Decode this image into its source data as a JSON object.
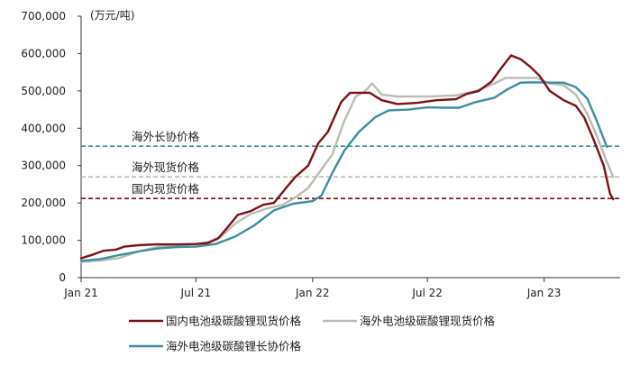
{
  "chart_data": {
    "type": "line",
    "unit_label": "(万元/吨)",
    "title": "",
    "xlabel": "",
    "ylabel": "",
    "ylim": [
      0,
      700000
    ],
    "y_ticks": [
      0,
      100000,
      200000,
      300000,
      400000,
      500000,
      600000,
      700000
    ],
    "y_tick_labels": [
      "0",
      "100,000",
      "200,000",
      "300,000",
      "400,000",
      "500,000",
      "600,000",
      "700,000"
    ],
    "xlim": [
      "2021-01",
      "2023-07"
    ],
    "x_ticks": [
      "2021-01",
      "2021-07",
      "2022-01",
      "2022-07",
      "2023-01"
    ],
    "x_tick_labels": [
      "Jan 21",
      "Jul 21",
      "Jan 22",
      "Jul 22",
      "Jan 23"
    ],
    "grid": false,
    "legend_position": "bottom",
    "series": [
      {
        "name": "国内电池级碳酸锂现货价格",
        "color": "#7b1216",
        "points": [
          [
            "2021-01-01",
            52000
          ],
          [
            "2021-01-20",
            62000
          ],
          [
            "2021-02-05",
            72000
          ],
          [
            "2021-02-25",
            75000
          ],
          [
            "2021-03-10",
            83000
          ],
          [
            "2021-04-01",
            87000
          ],
          [
            "2021-05-01",
            89000
          ],
          [
            "2021-06-01",
            89000
          ],
          [
            "2021-07-01",
            90000
          ],
          [
            "2021-07-20",
            93000
          ],
          [
            "2021-08-05",
            105000
          ],
          [
            "2021-08-20",
            135000
          ],
          [
            "2021-09-05",
            168000
          ],
          [
            "2021-09-25",
            178000
          ],
          [
            "2021-10-15",
            195000
          ],
          [
            "2021-11-01",
            200000
          ],
          [
            "2021-11-20",
            240000
          ],
          [
            "2021-12-05",
            270000
          ],
          [
            "2021-12-25",
            300000
          ],
          [
            "2022-01-10",
            360000
          ],
          [
            "2022-01-25",
            390000
          ],
          [
            "2022-02-15",
            470000
          ],
          [
            "2022-03-01",
            495000
          ],
          [
            "2022-04-01",
            495000
          ],
          [
            "2022-04-20",
            475000
          ],
          [
            "2022-05-15",
            465000
          ],
          [
            "2022-06-15",
            468000
          ],
          [
            "2022-07-15",
            475000
          ],
          [
            "2022-08-15",
            478000
          ],
          [
            "2022-09-01",
            492000
          ],
          [
            "2022-09-20",
            500000
          ],
          [
            "2022-10-10",
            525000
          ],
          [
            "2022-10-25",
            560000
          ],
          [
            "2022-11-10",
            595000
          ],
          [
            "2022-11-25",
            585000
          ],
          [
            "2022-12-10",
            565000
          ],
          [
            "2022-12-25",
            540000
          ],
          [
            "2023-01-10",
            500000
          ],
          [
            "2023-02-01",
            475000
          ],
          [
            "2023-02-20",
            460000
          ],
          [
            "2023-03-05",
            430000
          ],
          [
            "2023-03-20",
            370000
          ],
          [
            "2023-04-05",
            300000
          ],
          [
            "2023-04-15",
            225000
          ],
          [
            "2023-04-20",
            210000
          ]
        ]
      },
      {
        "name": "海外电池级碳酸锂现货价格",
        "color": "#bbbcb1",
        "points": [
          [
            "2021-01-01",
            42000
          ],
          [
            "2021-02-01",
            46000
          ],
          [
            "2021-03-01",
            52000
          ],
          [
            "2021-04-01",
            70000
          ],
          [
            "2021-05-01",
            82000
          ],
          [
            "2021-06-01",
            87000
          ],
          [
            "2021-07-01",
            90000
          ],
          [
            "2021-07-20",
            95000
          ],
          [
            "2021-08-10",
            110000
          ],
          [
            "2021-09-01",
            145000
          ],
          [
            "2021-09-25",
            170000
          ],
          [
            "2021-10-20",
            185000
          ],
          [
            "2021-11-15",
            195000
          ],
          [
            "2021-12-05",
            215000
          ],
          [
            "2021-12-25",
            240000
          ],
          [
            "2022-01-15",
            290000
          ],
          [
            "2022-02-01",
            330000
          ],
          [
            "2022-02-20",
            420000
          ],
          [
            "2022-03-10",
            485000
          ],
          [
            "2022-03-25",
            500000
          ],
          [
            "2022-04-05",
            520000
          ],
          [
            "2022-04-20",
            490000
          ],
          [
            "2022-05-15",
            485000
          ],
          [
            "2022-07-01",
            485000
          ],
          [
            "2022-08-15",
            488000
          ],
          [
            "2022-09-15",
            500000
          ],
          [
            "2022-10-15",
            520000
          ],
          [
            "2022-11-01",
            535000
          ],
          [
            "2022-12-01",
            535000
          ],
          [
            "2022-12-20",
            535000
          ],
          [
            "2023-01-10",
            520000
          ],
          [
            "2023-02-01",
            515000
          ],
          [
            "2023-02-20",
            490000
          ],
          [
            "2023-03-10",
            440000
          ],
          [
            "2023-03-25",
            380000
          ],
          [
            "2023-04-10",
            310000
          ],
          [
            "2023-04-20",
            270000
          ]
        ]
      },
      {
        "name": "海外电池级碳酸锂长协价格",
        "color": "#3c8ea1",
        "points": [
          [
            "2021-01-01",
            45000
          ],
          [
            "2021-02-01",
            50000
          ],
          [
            "2021-03-01",
            60000
          ],
          [
            "2021-04-01",
            70000
          ],
          [
            "2021-05-01",
            78000
          ],
          [
            "2021-06-01",
            82000
          ],
          [
            "2021-07-01",
            83000
          ],
          [
            "2021-08-01",
            90000
          ],
          [
            "2021-09-01",
            110000
          ],
          [
            "2021-10-01",
            140000
          ],
          [
            "2021-11-01",
            180000
          ],
          [
            "2021-12-01",
            198000
          ],
          [
            "2022-01-01",
            205000
          ],
          [
            "2022-01-15",
            220000
          ],
          [
            "2022-02-01",
            280000
          ],
          [
            "2022-02-20",
            340000
          ],
          [
            "2022-03-15",
            390000
          ],
          [
            "2022-04-10",
            430000
          ],
          [
            "2022-05-01",
            448000
          ],
          [
            "2022-06-01",
            450000
          ],
          [
            "2022-07-01",
            456000
          ],
          [
            "2022-08-01",
            455000
          ],
          [
            "2022-08-20",
            455000
          ],
          [
            "2022-09-15",
            470000
          ],
          [
            "2022-10-15",
            482000
          ],
          [
            "2022-11-05",
            505000
          ],
          [
            "2022-11-25",
            522000
          ],
          [
            "2022-12-20",
            523000
          ],
          [
            "2023-01-15",
            522000
          ],
          [
            "2023-02-01",
            522000
          ],
          [
            "2023-02-20",
            510000
          ],
          [
            "2023-03-10",
            480000
          ],
          [
            "2023-03-25",
            420000
          ],
          [
            "2023-04-10",
            350000
          ]
        ]
      }
    ],
    "reference_lines": [
      {
        "label": "海外长协价格",
        "value": 352000,
        "color": "#3c8ea1"
      },
      {
        "label": "海外现货价格",
        "value": 270000,
        "color": "#bbbcb1"
      },
      {
        "label": "国内现货价格",
        "value": 212000,
        "color": "#7b1216"
      }
    ]
  }
}
